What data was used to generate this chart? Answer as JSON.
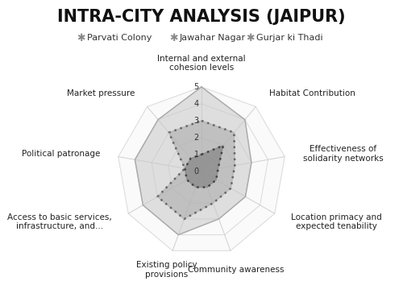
{
  "title": "INTRA-CITY ANALYSIS (JAIPUR)",
  "categories": [
    "Internal and external\ncohesion levels",
    "Habitat Contribution",
    "Effectiveness of\nsolidarity networks",
    "Location primacy and\nexpected tenability",
    "Community awareness",
    "Existing policy\nprovisions",
    "Access to basic services,\ninfrastructure, and...",
    "Political patronage",
    "Market pressure"
  ],
  "series": [
    {
      "name": "Parvati Colony",
      "values": [
        5,
        4,
        3,
        3,
        3,
        4,
        4,
        4,
        4
      ],
      "color": "#c8c8c8",
      "fill_alpha": 0.55,
      "linestyle": "solid",
      "linewidth": 1.0,
      "line_color": "#aaaaaa",
      "zorder": 1
    },
    {
      "name": "Jawahar Nagar",
      "values": [
        3,
        3,
        2,
        2,
        2,
        3,
        3,
        1,
        3
      ],
      "color": "#b0b0b0",
      "fill_alpha": 0.65,
      "linestyle": "dotted",
      "linewidth": 1.8,
      "line_color": "#666666",
      "zorder": 2
    },
    {
      "name": "Gurjar ki Thadi",
      "values": [
        1,
        2,
        1,
        1,
        1,
        1,
        1,
        1,
        1
      ],
      "color": "#888888",
      "fill_alpha": 0.75,
      "linestyle": "dotted",
      "linewidth": 1.8,
      "line_color": "#444444",
      "zorder": 3
    }
  ],
  "max_val": 5,
  "levels": [
    0,
    1,
    2,
    3,
    4,
    5
  ],
  "tick_labels": [
    "0",
    "1",
    "2",
    "3",
    "4",
    "5"
  ],
  "background_color": "#ffffff",
  "grid_color": "#d0d0d0",
  "title_fontsize": 15,
  "label_fontsize": 7.5,
  "legend_fontsize": 8.0
}
